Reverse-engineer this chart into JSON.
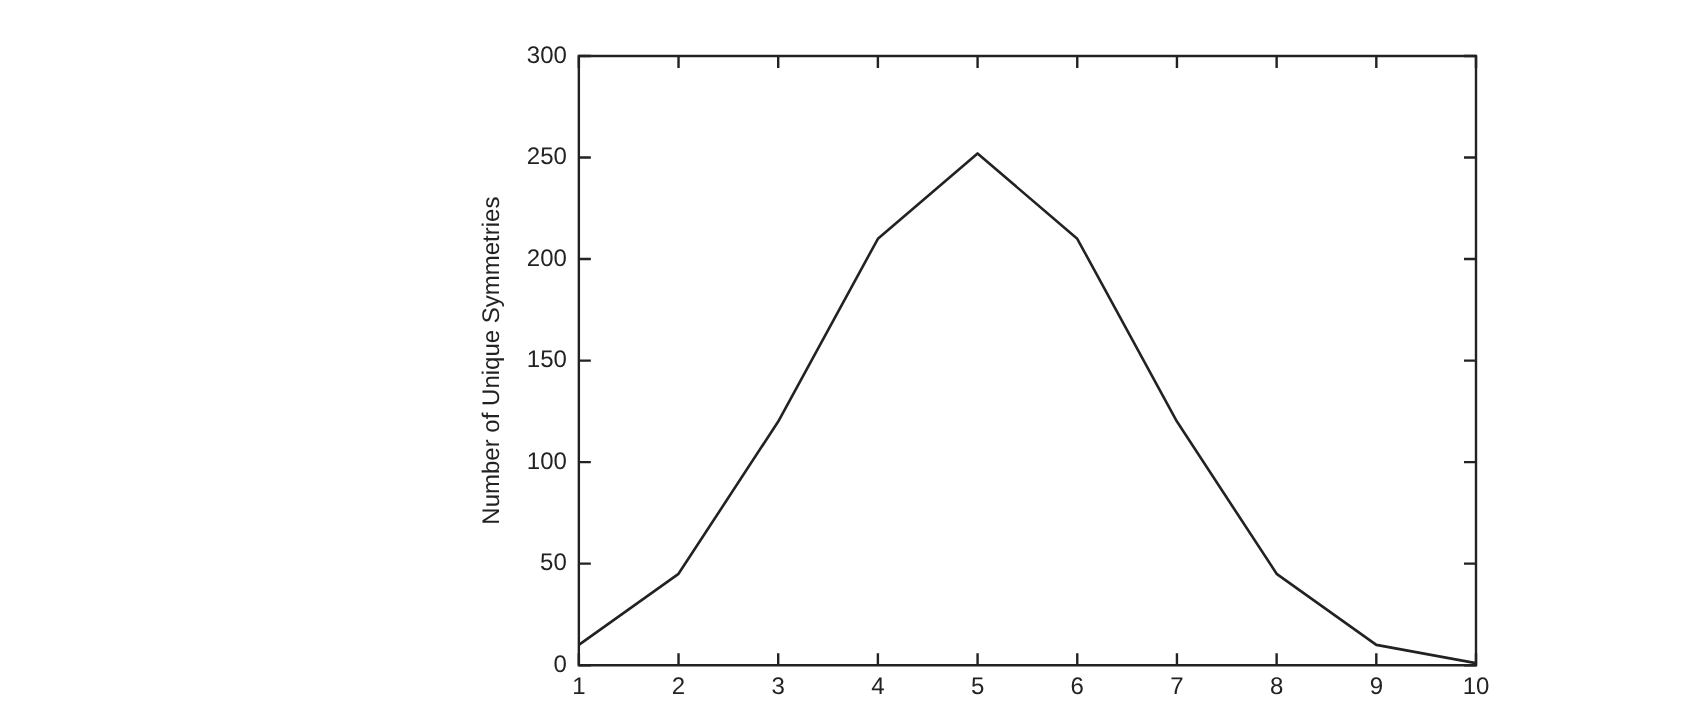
{
  "chart_data": {
    "type": "line",
    "ylabel": "Number of Unique Symmetries",
    "x": [
      1,
      2,
      3,
      4,
      5,
      6,
      7,
      8,
      9,
      10
    ],
    "series": [
      {
        "color": "#222222",
        "values": [
          10,
          45,
          120,
          210,
          252,
          210,
          120,
          45,
          10,
          1
        ]
      }
    ],
    "xlim": [
      1,
      10
    ],
    "xticks": [
      1,
      2,
      3,
      4,
      5,
      6,
      7,
      8,
      9,
      10
    ],
    "ylim": [
      0,
      300
    ],
    "yticks": [
      0,
      50,
      100,
      150,
      200,
      250,
      300
    ],
    "grid": false,
    "legend": false,
    "marker": "none",
    "line_style": "solid"
  }
}
